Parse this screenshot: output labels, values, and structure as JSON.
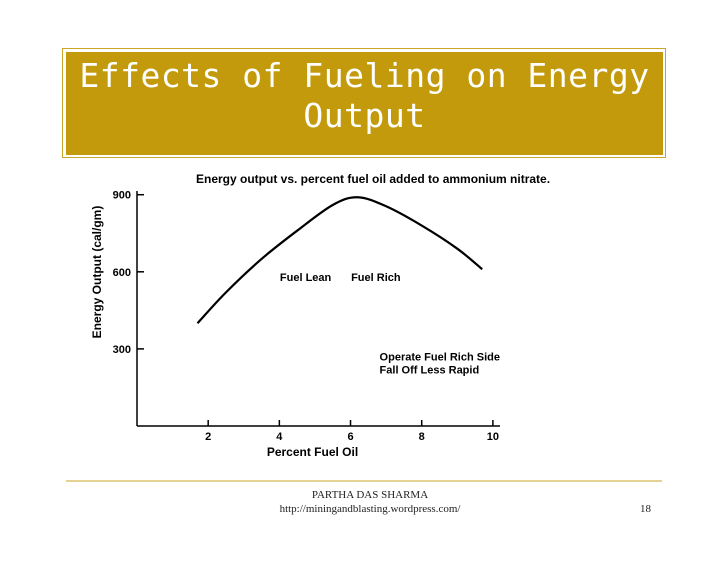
{
  "slide": {
    "title_line1": "Effects of Fueling on Energy",
    "title_line2": "Output",
    "footer_author": "PARTHA DAS SHARMA",
    "footer_url": "http://miningandblasting.wordpress.com/",
    "page_number": "18"
  },
  "colors": {
    "title_band": "#c29a0b",
    "accent_lines": "#c9a52a",
    "ink": "#000000"
  },
  "chart_data": {
    "type": "line",
    "title": "Energy output vs. percent fuel oil added to ammonium nitrate.",
    "xlabel": "Percent Fuel Oil",
    "ylabel": "Energy Output (cal/gm)",
    "xlim": [
      0,
      10.2
    ],
    "ylim": [
      0,
      930
    ],
    "x_ticks": [
      2,
      4,
      6,
      8,
      10
    ],
    "y_ticks": [
      300,
      600,
      900
    ],
    "grid": false,
    "series": [
      {
        "x": [
          1.7,
          2.5,
          3.5,
          4.5,
          5.5,
          6.2,
          7.0,
          8.0,
          9.0,
          9.7
        ],
        "y": [
          400,
          520,
          650,
          760,
          860,
          890,
          855,
          780,
          690,
          610
        ]
      }
    ],
    "annotations": [
      {
        "text": "Fuel Lean",
        "x": 4.1,
        "y": 580
      },
      {
        "text": "Fuel Rich",
        "x": 6.1,
        "y": 580
      },
      {
        "text": "Operate Fuel Rich Side",
        "x": 6.9,
        "y": 270
      },
      {
        "text": "Fall Off Less Rapid",
        "x": 6.9,
        "y": 220
      }
    ]
  }
}
